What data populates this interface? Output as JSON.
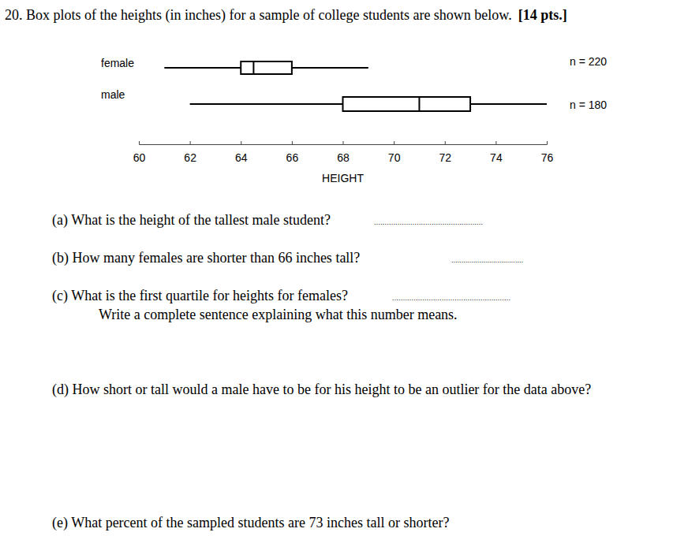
{
  "document": {
    "title": "20. Box plots of the heights (in inches) for a sample of college students are shown below.",
    "points": "[14 pts.]",
    "questions": [
      {
        "text": "(a) What is the height of the tallest male student?",
        "blank": "..................................................."
      },
      {
        "text": "(b) How many females are shorter than 66 inches tall?",
        "blank": "...................................."
      },
      {
        "text": "(c) What is the first quartile for heights for females?",
        "blank": ".......................................................",
        "follow_up": "Write a complete sentence explaining what this number means."
      },
      {
        "text": "(d) How short or tall would a male have to be for his height to be an outlier for the data above?"
      },
      {
        "text": "(e) What percent of the sampled students are 73 inches tall or shorter?"
      }
    ]
  },
  "chart_data": {
    "type": "box",
    "orientation": "horizontal",
    "categories": [
      "female",
      "male"
    ],
    "values": [
      {
        "min": 61,
        "q1": 64,
        "median": 64.5,
        "q3": 66,
        "max": 69
      },
      {
        "min": 62,
        "q1": 68,
        "median": 71,
        "q3": 73,
        "max": 76
      }
    ],
    "annotations": [
      "n = 220",
      "n = 180"
    ],
    "xlabel": "HEIGHT",
    "xlim": [
      60,
      76
    ],
    "xticks": [
      60,
      62,
      64,
      66,
      68,
      70,
      72,
      74,
      76
    ],
    "tick_labels": "x",
    "grid": false,
    "color": "#000000"
  }
}
